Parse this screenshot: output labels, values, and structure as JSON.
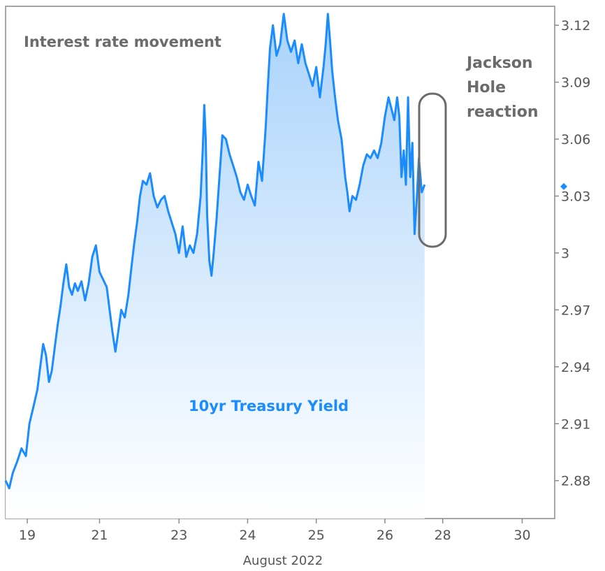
{
  "chart_data": {
    "type": "area",
    "title": "Interest rate movement",
    "series_label": "10yr Treasury Yield",
    "annotation": [
      "Jackson",
      "Hole",
      "reaction"
    ],
    "xlabel": "August 2022",
    "ylabel": "",
    "ylim": [
      2.86,
      3.13
    ],
    "y_ticks": [
      "3.12",
      "3.09",
      "3.06",
      "3.03",
      "3",
      "2.97",
      "2.94",
      "2.91",
      "2.88"
    ],
    "x_tick_labels": [
      "19",
      "21",
      "23",
      "24",
      "25",
      "26",
      "28",
      "30"
    ],
    "x_tick_positions": [
      0.3,
      1.3,
      2.4,
      3.35,
      4.3,
      5.25,
      6.05,
      7.15
    ],
    "xlim": [
      0,
      7.6
    ],
    "last_value": 3.035,
    "grid": false,
    "legend": "none",
    "colors": {
      "line": "#1a8cff",
      "fill_top": "#a9d2fb",
      "fill_bottom": "#ffffff",
      "annotation_box": "#6b6b6b",
      "text": "#6b6b6b"
    },
    "series": [
      {
        "name": "10yr Treasury Yield",
        "points": [
          [
            0.0,
            2.88
          ],
          [
            0.05,
            2.876
          ],
          [
            0.1,
            2.884
          ],
          [
            0.16,
            2.89
          ],
          [
            0.22,
            2.897
          ],
          [
            0.28,
            2.893
          ],
          [
            0.33,
            2.91
          ],
          [
            0.38,
            2.918
          ],
          [
            0.44,
            2.928
          ],
          [
            0.48,
            2.94
          ],
          [
            0.52,
            2.952
          ],
          [
            0.56,
            2.946
          ],
          [
            0.6,
            2.932
          ],
          [
            0.64,
            2.938
          ],
          [
            0.68,
            2.95
          ],
          [
            0.72,
            2.962
          ],
          [
            0.76,
            2.972
          ],
          [
            0.8,
            2.984
          ],
          [
            0.84,
            2.994
          ],
          [
            0.88,
            2.982
          ],
          [
            0.92,
            2.978
          ],
          [
            0.96,
            2.984
          ],
          [
            1.0,
            2.98
          ],
          [
            1.05,
            2.985
          ],
          [
            1.1,
            2.975
          ],
          [
            1.15,
            2.984
          ],
          [
            1.2,
            2.998
          ],
          [
            1.25,
            3.004
          ],
          [
            1.3,
            2.99
          ],
          [
            1.35,
            2.986
          ],
          [
            1.4,
            2.982
          ],
          [
            1.44,
            2.97
          ],
          [
            1.48,
            2.958
          ],
          [
            1.52,
            2.948
          ],
          [
            1.55,
            2.956
          ],
          [
            1.6,
            2.97
          ],
          [
            1.65,
            2.966
          ],
          [
            1.7,
            2.978
          ],
          [
            1.74,
            2.992
          ],
          [
            1.78,
            3.005
          ],
          [
            1.82,
            3.016
          ],
          [
            1.86,
            3.03
          ],
          [
            1.9,
            3.038
          ],
          [
            1.95,
            3.036
          ],
          [
            2.0,
            3.042
          ],
          [
            2.05,
            3.03
          ],
          [
            2.1,
            3.024
          ],
          [
            2.15,
            3.028
          ],
          [
            2.2,
            3.03
          ],
          [
            2.25,
            3.022
          ],
          [
            2.3,
            3.016
          ],
          [
            2.35,
            3.01
          ],
          [
            2.4,
            3.0
          ],
          [
            2.45,
            3.014
          ],
          [
            2.5,
            2.998
          ],
          [
            2.55,
            3.004
          ],
          [
            2.6,
            3.0
          ],
          [
            2.65,
            3.01
          ],
          [
            2.7,
            3.03
          ],
          [
            2.73,
            3.055
          ],
          [
            2.75,
            3.078
          ],
          [
            2.77,
            3.06
          ],
          [
            2.79,
            3.02
          ],
          [
            2.82,
            2.996
          ],
          [
            2.85,
            2.988
          ],
          [
            2.88,
            3.0
          ],
          [
            2.92,
            3.018
          ],
          [
            2.96,
            3.04
          ],
          [
            3.0,
            3.062
          ],
          [
            3.05,
            3.06
          ],
          [
            3.1,
            3.052
          ],
          [
            3.15,
            3.046
          ],
          [
            3.2,
            3.04
          ],
          [
            3.25,
            3.032
          ],
          [
            3.3,
            3.028
          ],
          [
            3.35,
            3.036
          ],
          [
            3.4,
            3.03
          ],
          [
            3.45,
            3.025
          ],
          [
            3.5,
            3.048
          ],
          [
            3.55,
            3.038
          ],
          [
            3.6,
            3.066
          ],
          [
            3.63,
            3.088
          ],
          [
            3.66,
            3.108
          ],
          [
            3.7,
            3.12
          ],
          [
            3.75,
            3.104
          ],
          [
            3.8,
            3.11
          ],
          [
            3.85,
            3.126
          ],
          [
            3.9,
            3.112
          ],
          [
            3.95,
            3.106
          ],
          [
            4.0,
            3.112
          ],
          [
            4.05,
            3.1
          ],
          [
            4.1,
            3.11
          ],
          [
            4.15,
            3.1
          ],
          [
            4.2,
            3.094
          ],
          [
            4.25,
            3.088
          ],
          [
            4.3,
            3.098
          ],
          [
            4.35,
            3.082
          ],
          [
            4.4,
            3.098
          ],
          [
            4.43,
            3.11
          ],
          [
            4.46,
            3.126
          ],
          [
            4.49,
            3.112
          ],
          [
            4.52,
            3.096
          ],
          [
            4.56,
            3.082
          ],
          [
            4.6,
            3.07
          ],
          [
            4.65,
            3.06
          ],
          [
            4.7,
            3.04
          ],
          [
            4.73,
            3.032
          ],
          [
            4.76,
            3.022
          ],
          [
            4.8,
            3.03
          ],
          [
            4.85,
            3.028
          ],
          [
            4.9,
            3.036
          ],
          [
            4.95,
            3.046
          ],
          [
            5.0,
            3.052
          ],
          [
            5.05,
            3.05
          ],
          [
            5.1,
            3.054
          ],
          [
            5.15,
            3.05
          ],
          [
            5.2,
            3.058
          ],
          [
            5.25,
            3.072
          ],
          [
            5.3,
            3.082
          ],
          [
            5.34,
            3.076
          ],
          [
            5.38,
            3.07
          ],
          [
            5.42,
            3.082
          ],
          [
            5.45,
            3.072
          ],
          [
            5.48,
            3.04
          ],
          [
            5.51,
            3.054
          ],
          [
            5.54,
            3.036
          ],
          [
            5.57,
            3.082
          ],
          [
            5.6,
            3.04
          ],
          [
            5.63,
            3.058
          ],
          [
            5.66,
            3.01
          ],
          [
            5.69,
            3.028
          ],
          [
            5.72,
            3.05
          ],
          [
            5.76,
            3.032
          ],
          [
            5.8,
            3.036
          ]
        ]
      }
    ]
  }
}
